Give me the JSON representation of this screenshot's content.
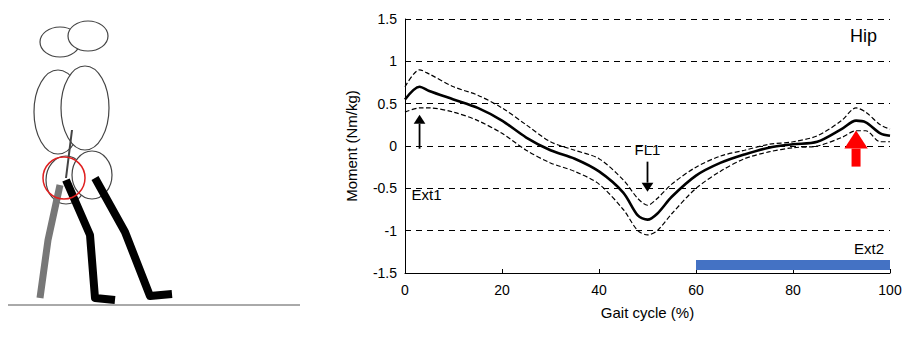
{
  "chart_data": {
    "type": "line",
    "title": "Hip",
    "x_label": "Gait cycle (%)",
    "y_label": "Moment (Nm/kg)",
    "x": [
      0,
      3,
      5,
      10,
      15,
      20,
      25,
      30,
      35,
      40,
      45,
      48,
      50,
      52,
      55,
      60,
      65,
      70,
      75,
      80,
      85,
      90,
      93,
      95,
      98,
      100
    ],
    "series": [
      {
        "color": "#000000",
        "line_style": "solid",
        "values": [
          0.55,
          0.7,
          0.65,
          0.55,
          0.45,
          0.3,
          0.1,
          -0.05,
          -0.15,
          -0.3,
          -0.55,
          -0.82,
          -0.87,
          -0.8,
          -0.6,
          -0.35,
          -0.2,
          -0.1,
          -0.02,
          0.02,
          0.05,
          0.2,
          0.3,
          0.28,
          0.15,
          0.12
        ]
      },
      {
        "color": "#000000",
        "line_style": "dashed",
        "values": [
          0.7,
          0.9,
          0.85,
          0.7,
          0.6,
          0.45,
          0.25,
          0.05,
          -0.05,
          -0.15,
          -0.4,
          -0.62,
          -0.7,
          -0.62,
          -0.45,
          -0.25,
          -0.12,
          -0.05,
          0.02,
          0.05,
          0.12,
          0.3,
          0.45,
          0.4,
          0.25,
          0.2
        ]
      },
      {
        "color": "#000000",
        "line_style": "dashed",
        "values": [
          0.4,
          0.45,
          0.45,
          0.4,
          0.3,
          0.15,
          -0.05,
          -0.2,
          -0.3,
          -0.45,
          -0.75,
          -1.0,
          -1.05,
          -1.0,
          -0.8,
          -0.5,
          -0.3,
          -0.15,
          -0.07,
          -0.02,
          0.0,
          0.1,
          0.18,
          0.18,
          0.05,
          0.05
        ]
      }
    ],
    "annotations": [
      {
        "text": "Ext1",
        "x": 3,
        "y": 0.7,
        "color": "#000000"
      },
      {
        "text": "FL1",
        "x": 50,
        "y": -0.87,
        "color": "#000000"
      },
      {
        "text": "Ext2",
        "x": 93,
        "y": 0.3,
        "color": "#ff0000"
      }
    ],
    "swing_phase": {
      "x": [
        60,
        100
      ],
      "color": "#4472c4"
    },
    "xlim": [
      0,
      100
    ],
    "xticks": [
      0,
      20,
      40,
      60,
      80,
      100
    ],
    "ylim": [
      -1.5,
      1.5
    ],
    "yticks": [
      -1.5,
      -1,
      -0.5,
      0,
      0.5,
      1,
      1.5
    ],
    "grid": true
  }
}
